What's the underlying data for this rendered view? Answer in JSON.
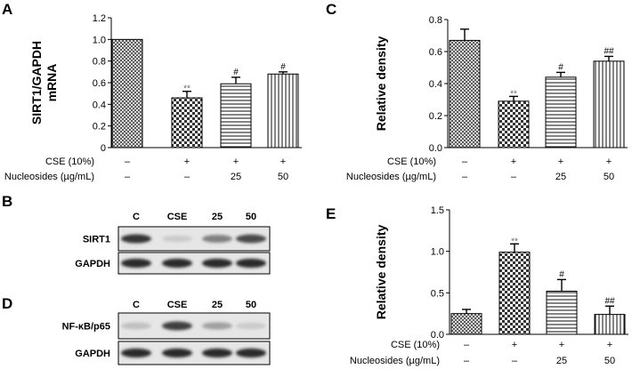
{
  "panel_letters": {
    "A": "A",
    "B": "B",
    "C": "C",
    "D": "D",
    "E": "E"
  },
  "chart_data": [
    {
      "id": "A",
      "type": "bar",
      "ylabel_lines": [
        "SIRT1/GAPDH",
        "mRNA"
      ],
      "ylim": [
        0,
        1.2
      ],
      "yticks": [
        "0",
        "0.2",
        "0.4",
        "0.6",
        "0.8",
        "1.0",
        "1.2"
      ],
      "values": [
        1.0,
        0.46,
        0.59,
        0.68
      ],
      "errors": [
        0.0,
        0.06,
        0.06,
        0.02
      ],
      "significance": [
        "",
        "**",
        "#",
        "#"
      ],
      "patterns": [
        "cross",
        "checker",
        "hlines",
        "vlines"
      ]
    },
    {
      "id": "C",
      "type": "bar",
      "ylabel_lines": [
        "Relative density"
      ],
      "ylim": [
        0,
        0.8
      ],
      "yticks": [
        "0.0",
        "0.2",
        "0.4",
        "0.6",
        "0.8"
      ],
      "values": [
        0.67,
        0.29,
        0.44,
        0.54
      ],
      "errors": [
        0.07,
        0.03,
        0.03,
        0.03
      ],
      "significance": [
        "",
        "**",
        "#",
        "##"
      ],
      "patterns": [
        "cross",
        "checker",
        "hlines",
        "vlines"
      ]
    },
    {
      "id": "E",
      "type": "bar",
      "ylabel_lines": [
        "Relative density"
      ],
      "ylim": [
        0,
        1.5
      ],
      "yticks": [
        "0.0",
        "0.5",
        "1.0",
        "1.5"
      ],
      "values": [
        0.25,
        0.99,
        0.52,
        0.24
      ],
      "errors": [
        0.05,
        0.1,
        0.14,
        0.1
      ],
      "significance": [
        "",
        "**",
        "#",
        "##"
      ],
      "patterns": [
        "cross",
        "checker",
        "hlines",
        "vlines"
      ]
    }
  ],
  "conditions": {
    "cse_label": "CSE (10%)",
    "cse_values": [
      "–",
      "+",
      "+",
      "+"
    ],
    "nucleosides_label": "Nucleosides (µg/mL)",
    "nucleosides_values": [
      "–",
      "–",
      "25",
      "50"
    ]
  },
  "blots": [
    {
      "id": "B",
      "lanes": [
        "C",
        "CSE",
        "25",
        "50"
      ],
      "proteins": [
        {
          "name": "SIRT1",
          "intensities": [
            0.85,
            0.15,
            0.5,
            0.75
          ]
        },
        {
          "name": "GAPDH",
          "intensities": [
            0.9,
            0.9,
            0.9,
            0.9
          ]
        }
      ]
    },
    {
      "id": "D",
      "lanes": [
        "C",
        "CSE",
        "25",
        "50"
      ],
      "proteins": [
        {
          "name": "NF-κB/p65",
          "intensities": [
            0.2,
            0.8,
            0.35,
            0.15
          ]
        },
        {
          "name": "GAPDH",
          "intensities": [
            0.9,
            0.9,
            0.9,
            0.9
          ]
        }
      ]
    }
  ]
}
